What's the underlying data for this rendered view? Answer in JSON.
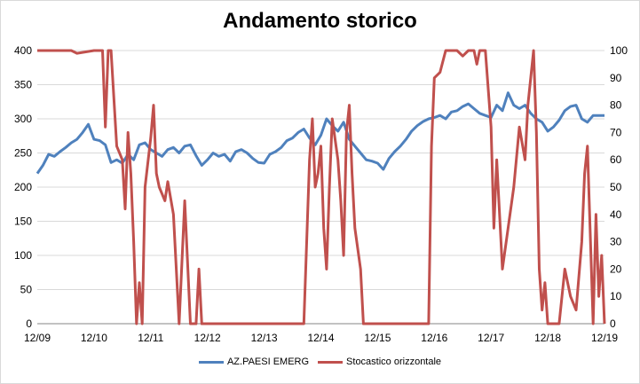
{
  "chart_data": {
    "type": "line",
    "title": "Andamento storico",
    "x_ticks": [
      "12/09",
      "12/10",
      "12/11",
      "12/12",
      "12/13",
      "12/14",
      "12/15",
      "12/16",
      "12/17",
      "12/18",
      "12/19"
    ],
    "y_left": {
      "ticks": [
        0,
        50,
        100,
        150,
        200,
        250,
        300,
        350,
        400
      ],
      "range": [
        0,
        400
      ]
    },
    "y_right": {
      "ticks": [
        0,
        10,
        20,
        30,
        40,
        50,
        60,
        70,
        80,
        90,
        100
      ],
      "range": [
        0,
        100
      ]
    },
    "grid": "horizontal",
    "legend_position": "bottom",
    "series": [
      {
        "name": "AZ.PAESI EMERG",
        "axis": "left",
        "color": "#4f81bd",
        "x": [
          0,
          0.1,
          0.2,
          0.3,
          0.4,
          0.5,
          0.6,
          0.7,
          0.8,
          0.9,
          1.0,
          1.1,
          1.2,
          1.3,
          1.4,
          1.5,
          1.6,
          1.7,
          1.8,
          1.9,
          2.0,
          2.1,
          2.2,
          2.3,
          2.4,
          2.5,
          2.6,
          2.7,
          2.8,
          2.9,
          3.0,
          3.1,
          3.2,
          3.3,
          3.4,
          3.5,
          3.6,
          3.7,
          3.8,
          3.9,
          4.0,
          4.1,
          4.2,
          4.3,
          4.4,
          4.5,
          4.6,
          4.7,
          4.8,
          4.9,
          5.0,
          5.1,
          5.2,
          5.3,
          5.4,
          5.5,
          5.6,
          5.7,
          5.8,
          5.9,
          6.0,
          6.1,
          6.2,
          6.3,
          6.4,
          6.5,
          6.6,
          6.7,
          6.8,
          6.9,
          7.0,
          7.1,
          7.2,
          7.3,
          7.4,
          7.5,
          7.6,
          7.7,
          7.8,
          7.9,
          8.0,
          8.1,
          8.2,
          8.3,
          8.4,
          8.5,
          8.6,
          8.7,
          8.8,
          8.9,
          9.0,
          9.1,
          9.2,
          9.3,
          9.4,
          9.5,
          9.6,
          9.7,
          9.8,
          9.9,
          10.0
        ],
        "values": [
          220,
          232,
          248,
          245,
          252,
          258,
          265,
          270,
          280,
          292,
          270,
          268,
          262,
          236,
          240,
          235,
          248,
          240,
          262,
          265,
          255,
          250,
          245,
          255,
          258,
          250,
          260,
          262,
          246,
          232,
          240,
          250,
          245,
          248,
          238,
          252,
          255,
          250,
          242,
          236,
          235,
          248,
          252,
          258,
          268,
          272,
          280,
          285,
          272,
          262,
          276,
          300,
          290,
          282,
          295,
          270,
          260,
          250,
          240,
          238,
          235,
          226,
          242,
          252,
          260,
          270,
          282,
          290,
          296,
          300,
          302,
          305,
          300,
          310,
          312,
          318,
          322,
          315,
          308,
          305,
          302,
          320,
          312,
          338,
          320,
          315,
          320,
          308,
          300,
          295,
          282,
          288,
          298,
          312,
          318,
          320,
          300,
          295,
          305,
          305,
          305
        ]
      },
      {
        "name": "Stocastico orizzontale",
        "axis": "right",
        "color": "#c0504d",
        "x": [
          0,
          0.6,
          0.7,
          1.0,
          1.15,
          1.2,
          1.25,
          1.3,
          1.4,
          1.5,
          1.55,
          1.6,
          1.65,
          1.7,
          1.75,
          1.8,
          1.85,
          1.9,
          2.0,
          2.05,
          2.1,
          2.15,
          2.25,
          2.3,
          2.4,
          2.5,
          2.6,
          2.7,
          2.8,
          2.85,
          2.9,
          3.0,
          3.1,
          3.2,
          3.3,
          3.4,
          3.5,
          3.55,
          3.6,
          3.65,
          3.7,
          3.8,
          3.9,
          4.0,
          4.3,
          4.7,
          4.8,
          4.85,
          4.9,
          4.95,
          5.0,
          5.05,
          5.1,
          5.15,
          5.2,
          5.3,
          5.35,
          5.4,
          5.45,
          5.5,
          5.55,
          5.6,
          5.7,
          5.75,
          5.8,
          5.9,
          6.0,
          6.3,
          6.5,
          6.8,
          6.9,
          6.95,
          7.0,
          7.1,
          7.2,
          7.3,
          7.4,
          7.5,
          7.6,
          7.7,
          7.75,
          7.8,
          7.85,
          7.9,
          8.0,
          8.05,
          8.1,
          8.2,
          8.3,
          8.4,
          8.5,
          8.6,
          8.65,
          8.7,
          8.75,
          8.8,
          8.85,
          8.9,
          8.95,
          9.0,
          9.1,
          9.2,
          9.3,
          9.4,
          9.5,
          9.6,
          9.65,
          9.7,
          9.8,
          9.85,
          9.9,
          9.95,
          10.0
        ],
        "values": [
          100,
          100,
          99,
          100,
          100,
          72,
          100,
          100,
          65,
          60,
          42,
          70,
          55,
          30,
          0,
          15,
          0,
          50,
          68,
          80,
          55,
          50,
          45,
          52,
          40,
          0,
          45,
          0,
          0,
          20,
          0,
          0,
          0,
          0,
          0,
          0,
          0,
          0,
          0,
          0,
          0,
          0,
          0,
          0,
          0,
          0,
          60,
          75,
          50,
          55,
          65,
          35,
          20,
          50,
          75,
          60,
          45,
          25,
          70,
          80,
          55,
          35,
          20,
          0,
          0,
          0,
          0,
          0,
          0,
          0,
          0,
          65,
          90,
          92,
          100,
          100,
          100,
          98,
          100,
          100,
          95,
          100,
          100,
          100,
          72,
          35,
          60,
          20,
          35,
          50,
          72,
          60,
          80,
          90,
          100,
          70,
          20,
          5,
          15,
          0,
          0,
          0,
          20,
          10,
          5,
          30,
          55,
          65,
          0,
          40,
          10,
          25,
          0
        ]
      }
    ]
  }
}
